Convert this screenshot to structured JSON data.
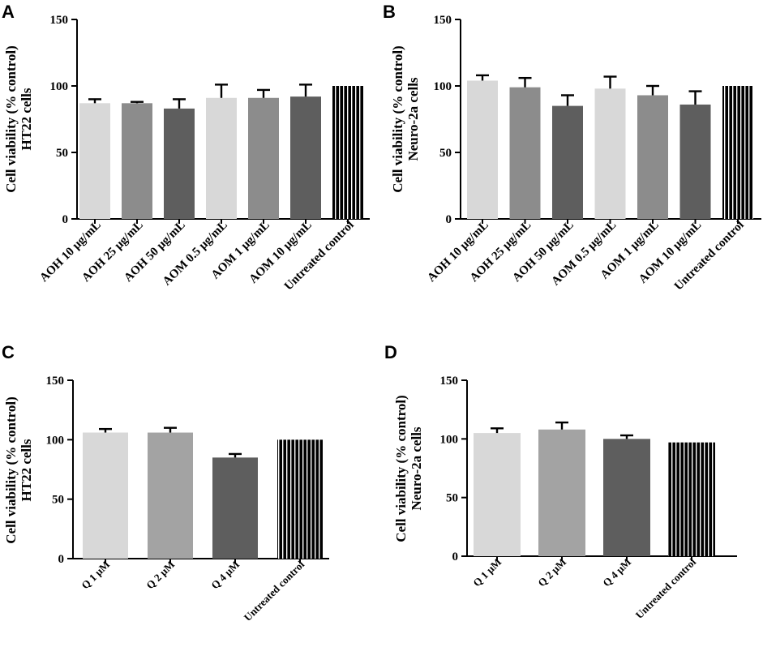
{
  "figure": {
    "colors": {
      "light": "#d8d8d8",
      "mid": "#8c8c8c",
      "dark": "#5e5e5e",
      "q2": "#a3a3a3",
      "control": "#000000"
    }
  },
  "chart_data": [
    {
      "panel": "A",
      "type": "bar",
      "ylabel_lines": [
        "Cell viability (% control)",
        "HT22 cells"
      ],
      "ylim": [
        0,
        150
      ],
      "yticks": [
        "0",
        "50",
        "100",
        "150"
      ],
      "categories": [
        "AOH 10 μg/mL",
        "AOH 25 μg/mL",
        "AOH 50 μg/mL",
        "AOM 0.5 μg/mL",
        "AOM 1 μg/mL",
        "AOM 10 μg/mL",
        "Untreated control"
      ],
      "values": [
        87,
        87,
        83,
        91,
        91,
        92,
        100
      ],
      "errors": [
        3,
        1,
        7,
        10,
        6,
        9,
        0
      ],
      "colors": [
        "light",
        "mid",
        "dark",
        "light",
        "mid",
        "dark",
        "control"
      ]
    },
    {
      "panel": "B",
      "type": "bar",
      "ylabel_lines": [
        "Cell viability (% control)",
        "Neuro-2a cells"
      ],
      "ylim": [
        0,
        150
      ],
      "yticks": [
        "0",
        "50",
        "100",
        "150"
      ],
      "categories": [
        "AOH 10 μg/mL",
        "AOH 25 μg/mL",
        "AOH 50 μg/mL",
        "AOM 0.5 μg/mL",
        "AOM 1 μg/mL",
        "AOM 10 μg/mL",
        "Untreated control"
      ],
      "values": [
        104,
        99,
        85,
        98,
        93,
        86,
        100
      ],
      "errors": [
        4,
        7,
        8,
        9,
        7,
        10,
        0
      ],
      "colors": [
        "light",
        "mid",
        "dark",
        "light",
        "mid",
        "dark",
        "control"
      ]
    },
    {
      "panel": "C",
      "type": "bar",
      "ylabel_lines": [
        "Cell viability (% control)",
        "HT22 cells"
      ],
      "ylim": [
        0,
        150
      ],
      "yticks": [
        "0",
        "50",
        "100",
        "150"
      ],
      "categories": [
        "Q 1 μM",
        "Q 2 μM",
        "Q 4 μM",
        "Untreated control"
      ],
      "values": [
        106,
        106,
        85,
        100
      ],
      "errors": [
        3,
        4,
        3,
        0
      ],
      "colors": [
        "light",
        "q2",
        "dark",
        "control"
      ]
    },
    {
      "panel": "D",
      "type": "bar",
      "ylabel_lines": [
        "Cell viability (% control)",
        "Neuro-2a cells"
      ],
      "ylim": [
        0,
        150
      ],
      "yticks": [
        "0",
        "50",
        "100",
        "150"
      ],
      "categories": [
        "Q 1 μM",
        "Q 2 μM",
        "Q 4 μM",
        "Untreated control"
      ],
      "values": [
        105,
        108,
        100,
        97
      ],
      "errors": [
        4,
        6,
        3,
        0
      ],
      "colors": [
        "light",
        "q2",
        "dark",
        "control"
      ]
    }
  ]
}
